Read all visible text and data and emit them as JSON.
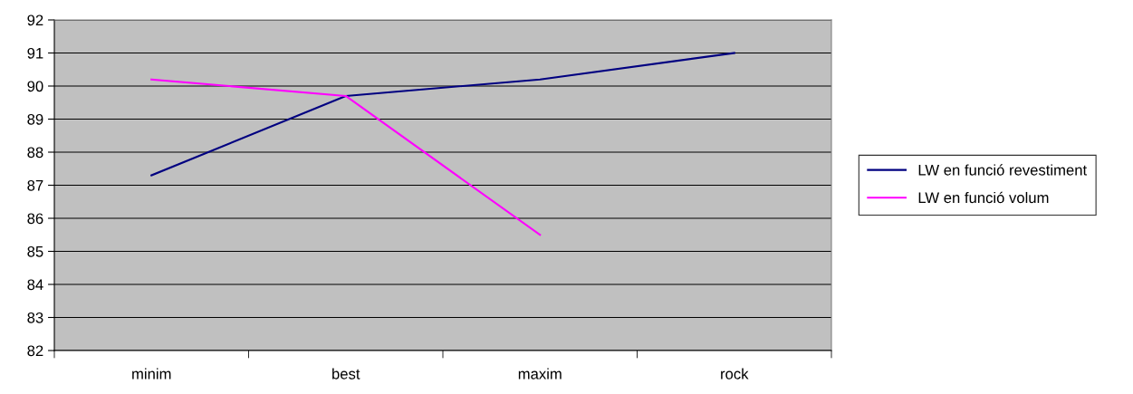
{
  "chart_data": {
    "type": "line",
    "categories": [
      "minim",
      "best",
      "maxim",
      "rock"
    ],
    "series": [
      {
        "name": "LW en funció revestiment",
        "color": "#000080",
        "values": [
          87.3,
          89.7,
          90.2,
          91.0
        ]
      },
      {
        "name": "LW en funció volum",
        "color": "#ff00ff",
        "values": [
          90.2,
          89.7,
          85.5,
          null
        ]
      }
    ],
    "ylim": [
      82,
      92
    ],
    "yticks": [
      82,
      83,
      84,
      85,
      86,
      87,
      88,
      89,
      90,
      91,
      92
    ],
    "grid": "y",
    "legend": "right",
    "marker": "none",
    "line_style": "solid"
  }
}
